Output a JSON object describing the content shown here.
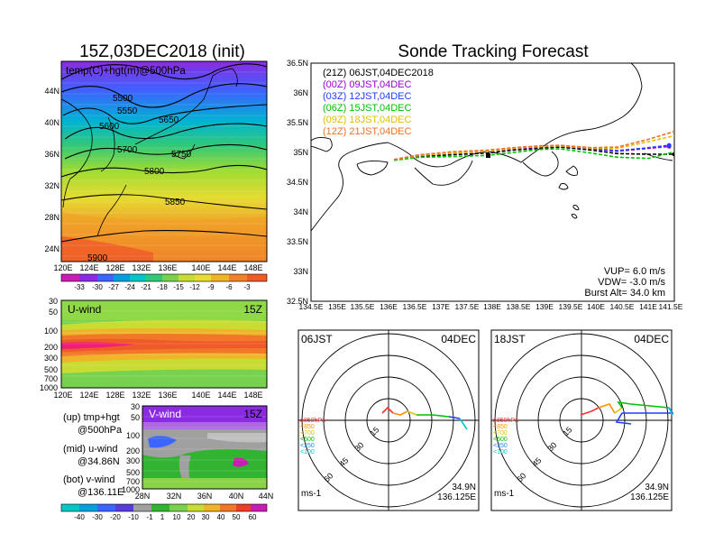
{
  "left": {
    "main_title": "15Z,03DEC2018 (init)",
    "map": {
      "subtitle": "temp(C)+hgt(m)@500hPa",
      "lat_labels": [
        "44N",
        "40N",
        "36N",
        "32N",
        "28N",
        "24N"
      ],
      "lon_labels": [
        "120E",
        "124E",
        "128E",
        "132E",
        "136E",
        "140E",
        "144E",
        "148E"
      ],
      "contour_labels": [
        "5500",
        "5550",
        "5600",
        "5650",
        "5700",
        "5750",
        "5800",
        "5850",
        "5900"
      ],
      "colorbar_labels": [
        "-33",
        "-30",
        "-27",
        "-24",
        "-21",
        "-18",
        "-15",
        "-12",
        "-9",
        "-6",
        "-3"
      ]
    },
    "uwind": {
      "title": "U-wind",
      "time": "15Z",
      "pressure_labels": [
        "30",
        "50",
        "100",
        "200",
        "300",
        "500",
        "700",
        "1000"
      ],
      "lon_labels": [
        "120E",
        "124E",
        "128E",
        "132E",
        "136E",
        "140E",
        "144E",
        "148E"
      ]
    },
    "vwind": {
      "title": "V-wind",
      "time": "15Z",
      "pressure_labels": [
        "30",
        "50",
        "100",
        "200",
        "300",
        "500",
        "700",
        "1000"
      ],
      "lat_labels": [
        "28N",
        "32N",
        "36N",
        "40N",
        "44N"
      ],
      "colorbar_labels": [
        "-40",
        "-30",
        "-20",
        "-10",
        "-1",
        "1",
        "10",
        "20",
        "30",
        "40",
        "50",
        "60"
      ]
    },
    "legend_text": {
      "l1a": "(up) tmp+hgt",
      "l1b": "@500hPa",
      "l2a": "(mid) u-wind",
      "l2b": "@34.86N",
      "l3a": "(bot) v-wind",
      "l3b": "@136.11E"
    }
  },
  "right": {
    "title": "Sonde Tracking Forecast",
    "runs": [
      {
        "label": "(21Z) 06JST,04DEC2018",
        "color": "#000000"
      },
      {
        "label": "(00Z) 09JST,04DEC",
        "color": "#9b00d0"
      },
      {
        "label": "(03Z) 12JST,04DEC",
        "color": "#1e3cff"
      },
      {
        "label": "(06Z) 15JST,04DEC",
        "color": "#00c000"
      },
      {
        "label": "(09Z) 18JST,04DEC",
        "color": "#e0c000"
      },
      {
        "label": "(12Z) 21JST,04DEC",
        "color": "#f07020"
      }
    ],
    "lat_labels": [
      "36.5N",
      "36N",
      "35.5N",
      "35N",
      "34.5N",
      "34N",
      "33.5N",
      "33N",
      "32.5N"
    ],
    "lon_labels": [
      "134.5E",
      "135E",
      "135.5E",
      "136E",
      "136.5E",
      "137E",
      "137.5E",
      "138E",
      "138.5E",
      "139E",
      "139.5E",
      "140E",
      "140.5E",
      "141E",
      "141.5E"
    ],
    "params": {
      "vup": "VUP=  6.0 m/s",
      "vdw": "VDW= -3.0 m/s",
      "burst": "Burst Alt= 34.0 km"
    }
  },
  "polar": [
    {
      "time": "06JST",
      "date": "04DEC",
      "lat": "34.9N",
      "lon": "136.125E",
      "units": "ms-1"
    },
    {
      "time": "18JST",
      "date": "04DEC",
      "lat": "34.9N",
      "lon": "136.125E",
      "units": "ms-1"
    }
  ],
  "polar_ring_labels": [
    "15",
    "30",
    "45",
    "60"
  ],
  "polar_levels": [
    {
      "label": "≥850hPa",
      "color": "#ff3030"
    },
    {
      "label": "<850",
      "color": "#ff9000"
    },
    {
      "label": "<700",
      "color": "#d8c800"
    },
    {
      "label": "<500",
      "color": "#00c000"
    },
    {
      "label": "<250",
      "color": "#1e8cff"
    },
    {
      "label": "<100",
      "color": "#00c8c8"
    }
  ],
  "chart_data": [
    {
      "type": "line",
      "title": "Sonde Tracking Forecast",
      "xlabel": "",
      "ylabel": "",
      "xlim": [
        134.5,
        141.5
      ],
      "ylim": [
        32.5,
        36.5
      ],
      "series": [
        {
          "name": "(21Z) 06JST,04DEC2018",
          "x": [
            136.1,
            136.6,
            137.2,
            137.9,
            138.4,
            138.9,
            139.3,
            139.9,
            140.4,
            141.0,
            141.5
          ],
          "y": [
            34.87,
            34.93,
            34.96,
            34.99,
            35.04,
            35.07,
            35.09,
            35.04,
            34.98,
            34.97,
            34.97
          ]
        },
        {
          "name": "(00Z) 09JST,04DEC",
          "x": [
            136.1,
            136.6,
            137.2,
            137.9,
            138.4,
            138.9,
            139.3,
            139.9,
            140.4,
            140.9,
            141.4
          ],
          "y": [
            34.88,
            34.95,
            34.99,
            35.02,
            35.06,
            35.09,
            35.11,
            35.06,
            35.02,
            35.06,
            35.1
          ]
        },
        {
          "name": "(03Z) 12JST,04DEC",
          "x": [
            136.1,
            136.6,
            137.2,
            137.9,
            138.4,
            138.9,
            139.3,
            139.9,
            140.4,
            140.9,
            141.4
          ],
          "y": [
            34.88,
            34.96,
            35.0,
            35.03,
            35.07,
            35.1,
            35.12,
            35.06,
            35.03,
            35.07,
            35.12
          ]
        },
        {
          "name": "(06Z) 15JST,04DEC",
          "x": [
            136.1,
            136.6,
            137.2,
            137.9,
            138.4,
            138.9,
            139.3,
            139.9,
            140.4,
            141.0,
            141.6
          ],
          "y": [
            34.87,
            34.92,
            34.93,
            34.95,
            35.0,
            35.05,
            35.06,
            34.99,
            34.92,
            34.9,
            35.03
          ]
        },
        {
          "name": "(09Z) 18JST,04DEC",
          "x": [
            136.1,
            136.6,
            137.2,
            137.9,
            138.4,
            138.9,
            139.3,
            139.9,
            140.4,
            141.0,
            141.6
          ],
          "y": [
            34.88,
            34.95,
            34.99,
            35.02,
            35.07,
            35.1,
            35.11,
            35.07,
            35.07,
            35.18,
            35.3
          ]
        },
        {
          "name": "(12Z) 21JST,04DEC",
          "x": [
            136.1,
            136.6,
            137.2,
            137.9,
            138.4,
            138.9,
            139.3,
            139.9,
            140.4,
            141.0,
            141.6
          ],
          "y": [
            34.88,
            34.96,
            35.01,
            35.04,
            35.08,
            35.11,
            35.12,
            35.08,
            35.09,
            35.22,
            35.38
          ]
        }
      ]
    }
  ]
}
